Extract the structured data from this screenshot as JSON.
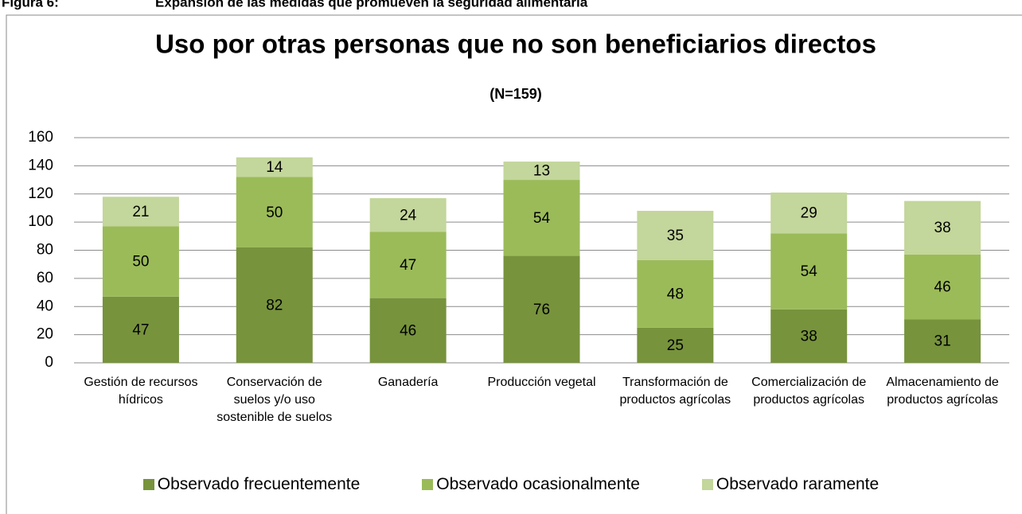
{
  "caption": {
    "label": "Figura 6:",
    "text": "Expansión de las medidas que promueven la seguridad alimentaria"
  },
  "chart_data": {
    "type": "stacked_bar",
    "title": "Uso por otras personas que no son beneficiarios directos",
    "subtitle": "(N=159)",
    "categories": [
      "Gestión de recursos hídricos",
      "Conservación de suelos y/o uso sostenible de suelos",
      "Ganadería",
      "Producción vegetal",
      "Transformación de productos agrícolas",
      "Comercialización de productos agrícolas",
      "Almacenamiento de productos agrícolas"
    ],
    "series": [
      {
        "name": "Observado frecuentemente",
        "color": "#77933c",
        "values": [
          47,
          82,
          46,
          76,
          25,
          38,
          31
        ]
      },
      {
        "name": "Observado ocasionalmente",
        "color": "#9bbb59",
        "values": [
          50,
          50,
          47,
          54,
          48,
          54,
          46
        ]
      },
      {
        "name": "Observado raramente",
        "color": "#c3d69b",
        "values": [
          21,
          14,
          24,
          13,
          35,
          29,
          38
        ]
      }
    ],
    "ylim": [
      0,
      160
    ],
    "yticks": [
      0,
      20,
      40,
      60,
      80,
      100,
      120,
      140,
      160
    ],
    "grid": true,
    "legend": "bottom"
  }
}
